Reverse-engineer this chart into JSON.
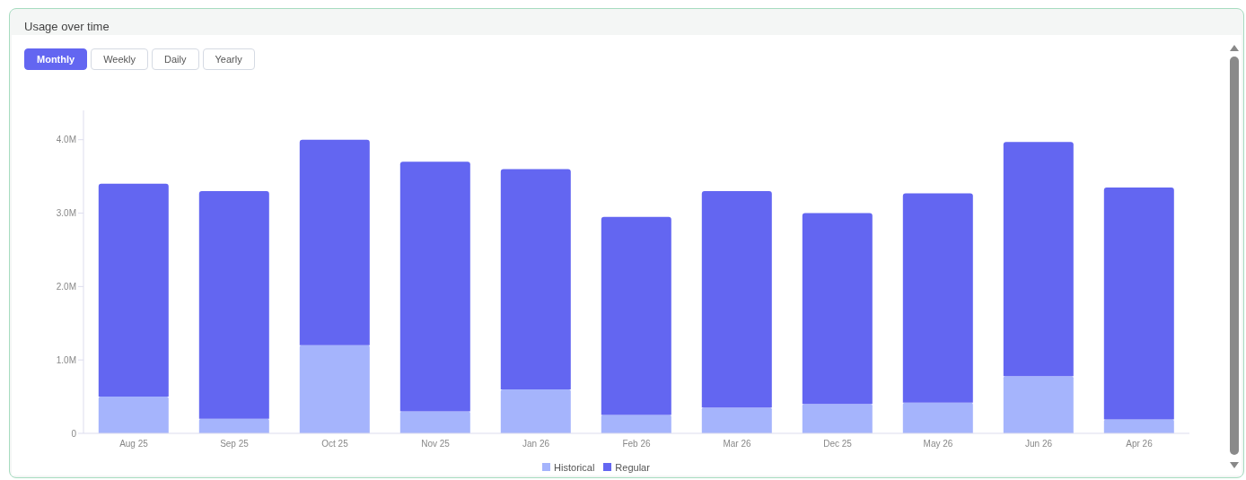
{
  "chart_data": {
    "type": "bar",
    "title": "Usage over time",
    "annotations": [
      "Monthly",
      "Weekly",
      "Daily",
      "Yearly"
    ],
    "categories": [
      "Aug 25",
      "Sep 25",
      "Oct 25",
      "Nov 25",
      "Jan 26",
      "Feb 26",
      "Mar 26",
      "Dec 25",
      "May 26",
      "Jun 26",
      "Apr 26"
    ],
    "stacked": true,
    "series": [
      {
        "name": "Historical",
        "color": "#a5b4fc",
        "values": [
          0.5,
          0.2,
          1.2,
          0.3,
          0.6,
          0.25,
          0.35,
          0.4,
          0.42,
          0.78,
          0.19
        ]
      },
      {
        "name": "Regular",
        "color": "#6366f1",
        "values": [
          2.9,
          3.1,
          2.8,
          3.4,
          3.0,
          2.7,
          2.95,
          2.6,
          2.85,
          3.19,
          3.16
        ]
      }
    ],
    "ylim": [
      0,
      4.4
    ],
    "yticks": [
      0,
      {
        "value": 1,
        "label": "1.0M"
      },
      {
        "value": 2,
        "label": "2.0M"
      },
      {
        "value": 3,
        "label": "3.0M"
      },
      {
        "value": 4,
        "label": "4.0M"
      }
    ],
    "grid": false,
    "legend": "bottom"
  }
}
